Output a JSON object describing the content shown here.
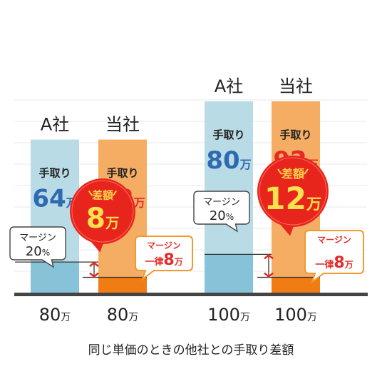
{
  "caption": "同じ単価のときの他社との手取り差額",
  "colors": {
    "competitor_bar": "#b9dbe6",
    "competitor_margin": "#86c3d8",
    "ours_bar": "#f4ad62",
    "ours_margin": "#f07c14",
    "blue_text": "#2e6ab2",
    "red_text": "#e32b2b",
    "burst_red": "#e8251d",
    "margin_bubble_border": "#f29a2e"
  },
  "chart_data": {
    "type": "bar",
    "title": "",
    "caption": "同じ単価のときの他社との手取り差額",
    "series": [
      {
        "name": "A社",
        "values": [
          64,
          80
        ]
      },
      {
        "name": "当社",
        "values": [
          72,
          92
        ]
      }
    ],
    "categories": [
      "80万",
      "100万"
    ],
    "ylim": [
      0,
      100
    ],
    "groups": [
      {
        "price_num": "80",
        "price_unit": "万",
        "bars": [
          {
            "name": "A社",
            "total": 80,
            "take_home": 64,
            "margin": 16,
            "take_home_label": "手取り",
            "take_home_num": "64",
            "take_home_unit": "万",
            "price_num": "80",
            "price_unit": "万"
          },
          {
            "name": "当社",
            "total": 80,
            "take_home": 72,
            "margin": 8,
            "take_home_label": "手取り",
            "take_home_num": "72",
            "take_home_unit": "万",
            "price_num": "80",
            "price_unit": "万"
          }
        ],
        "competitor_margin_label": {
          "line1": "マージン",
          "line2_num": "20",
          "line2_unit": "%"
        },
        "our_margin_label": {
          "line1": "マージン",
          "line2_prefix": "一律",
          "line2_num": "8",
          "line2_unit": "万"
        },
        "difference": {
          "label": "差額",
          "num": "8",
          "unit": "万",
          "value": 8
        }
      },
      {
        "price_num": "100",
        "price_unit": "万",
        "bars": [
          {
            "name": "A社",
            "total": 100,
            "take_home": 80,
            "margin": 20,
            "take_home_label": "手取り",
            "take_home_num": "80",
            "take_home_unit": "万",
            "price_num": "100",
            "price_unit": "万"
          },
          {
            "name": "当社",
            "total": 100,
            "take_home": 92,
            "margin": 8,
            "take_home_label": "手取り",
            "take_home_num": "92",
            "take_home_unit": "万",
            "price_num": "100",
            "price_unit": "万"
          }
        ],
        "competitor_margin_label": {
          "line1": "マージン",
          "line2_num": "20",
          "line2_unit": "%"
        },
        "our_margin_label": {
          "line1": "マージン",
          "line2_prefix": "一律",
          "line2_num": "8",
          "line2_unit": "万"
        },
        "difference": {
          "label": "差額",
          "num": "12",
          "unit": "万",
          "value": 12
        }
      }
    ]
  }
}
